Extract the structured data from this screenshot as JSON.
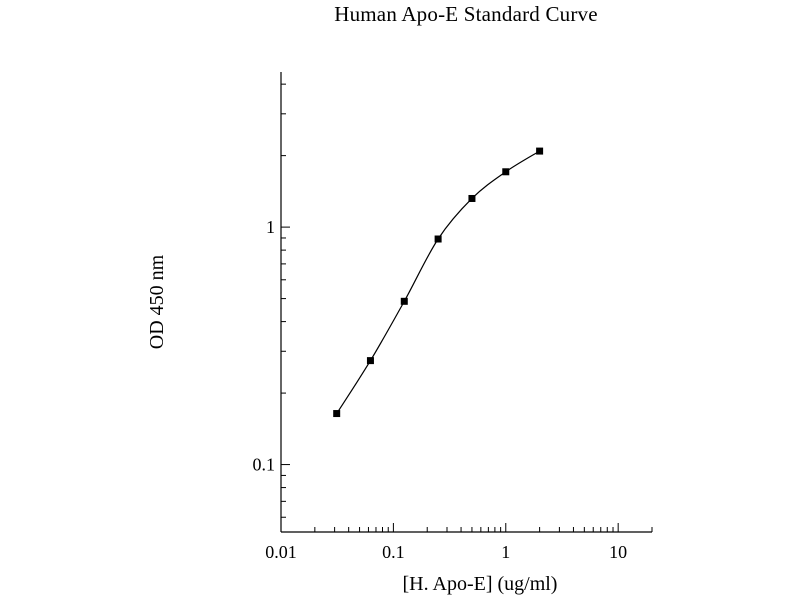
{
  "chart_data": {
    "type": "scatter",
    "title": "Human Apo-E Standard Curve",
    "xlabel": "[H. Apo-E] (ug/ml)",
    "ylabel": "OD 450 nm",
    "xscale": "log",
    "yscale": "log",
    "xlim": [
      0.01,
      20
    ],
    "ylim": [
      0.052,
      4.5
    ],
    "x_ticks": [
      {
        "value": 0.01,
        "label": "0.01"
      },
      {
        "value": 0.1,
        "label": "0.1"
      },
      {
        "value": 1,
        "label": "1"
      },
      {
        "value": 10,
        "label": "10"
      }
    ],
    "y_ticks": [
      {
        "value": 0.1,
        "label": "0.1"
      },
      {
        "value": 1,
        "label": "1"
      }
    ],
    "grid": false,
    "series": [
      {
        "x": [
          0.0313,
          0.0625,
          0.125,
          0.25,
          0.5,
          1,
          2
        ],
        "y": [
          0.164,
          0.274,
          0.487,
          0.891,
          1.32,
          1.71,
          2.09
        ],
        "marker": "square",
        "line": "smooth",
        "color": "#000000"
      }
    ]
  }
}
